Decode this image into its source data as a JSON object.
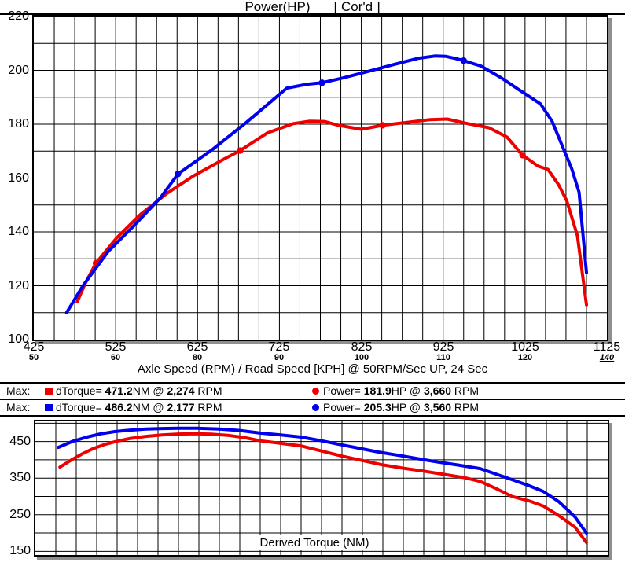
{
  "header": {
    "title_left": "Power(HP)",
    "title_right": "[ Cor'd ]"
  },
  "colors": {
    "red": "#ee0000",
    "blue": "#0000ee",
    "grid": "#000000",
    "frame": "#000000",
    "shadow": "#8f8f8f"
  },
  "legend": {
    "rows": [
      {
        "max_label": "Max:",
        "series_color": "red",
        "torque_prefix": "dTorque= ",
        "torque_value": "471.2",
        "torque_mid": "NM @ ",
        "torque_rpm": "2,274",
        "torque_suffix": " RPM",
        "power_prefix": "Power= ",
        "power_value": "181.9",
        "power_mid": "HP @ ",
        "power_rpm": "3,660",
        "power_suffix": " RPM"
      },
      {
        "max_label": "Max:",
        "series_color": "blue",
        "torque_prefix": "dTorque= ",
        "torque_value": "486.2",
        "torque_mid": "NM @ ",
        "torque_rpm": "2,177",
        "torque_suffix": " RPM",
        "power_prefix": "Power= ",
        "power_value": "205.3",
        "power_mid": "HP @ ",
        "power_rpm": "3,560",
        "power_suffix": " RPM"
      }
    ]
  },
  "chart_data": [
    {
      "id": "power",
      "type": "line",
      "dom": "power-svg",
      "title": "Power(HP) [ Cor'd ]",
      "x_axis": {
        "label": "Axle Speed (RPM) / Road Speed [KPH] @ 50RPM/Sec UP, 24 Sec",
        "range": [
          425,
          1125
        ],
        "grid_step": 25,
        "major_ticks": [
          425,
          525,
          625,
          725,
          825,
          925,
          1025,
          1125
        ],
        "rpm_labels": [
          "425",
          "525",
          "625",
          "725",
          "825",
          "925",
          "1025",
          "1125"
        ],
        "kph_labels": [
          "50",
          "60",
          "80",
          "90",
          "100",
          "110",
          "120",
          "140"
        ]
      },
      "y_axis": {
        "range": [
          100,
          220
        ],
        "grid_step": 10,
        "tick_values": [
          220,
          200,
          180,
          160,
          140,
          120,
          100
        ],
        "tick_labels": [
          "220",
          "200",
          "180",
          "160",
          "140",
          "120",
          "100"
        ]
      },
      "series": [
        {
          "name": "run1-power-red",
          "color": "red",
          "points": [
            [
              478,
              114
            ],
            [
              488,
              121
            ],
            [
              501,
              128.4
            ],
            [
              526,
              137.7
            ],
            [
              555,
              146.4
            ],
            [
              587,
              154.2
            ],
            [
              619,
              160.6
            ],
            [
              657,
              167
            ],
            [
              677,
              170.2
            ],
            [
              710,
              176.7
            ],
            [
              742,
              180.2
            ],
            [
              762,
              181.1
            ],
            [
              780,
              181
            ],
            [
              797,
              179.6
            ],
            [
              825,
              178.1
            ],
            [
              851,
              179.6
            ],
            [
              876,
              180.5
            ],
            [
              909,
              181.7
            ],
            [
              930,
              181.9
            ],
            [
              955,
              180.2
            ],
            [
              981,
              178.7
            ],
            [
              1003,
              175.2
            ],
            [
              1022,
              168.5
            ],
            [
              1041,
              164.4
            ],
            [
              1053,
              163.2
            ],
            [
              1066,
              157.5
            ],
            [
              1076,
              151.5
            ],
            [
              1089,
              138.5
            ],
            [
              1100,
              112.9
            ]
          ],
          "markers": [
            [
              501,
              128.4
            ],
            [
              677,
              170.2
            ],
            [
              851,
              179.6
            ],
            [
              1022,
              168.5
            ]
          ]
        },
        {
          "name": "run2-power-blue",
          "color": "blue",
          "points": [
            [
              465,
              110
            ],
            [
              485,
              120
            ],
            [
              516,
              132.8
            ],
            [
              548,
              142.5
            ],
            [
              580,
              152.8
            ],
            [
              601,
              161.5
            ],
            [
              644,
              170.8
            ],
            [
              684,
              180.5
            ],
            [
              717,
              189
            ],
            [
              734,
              193.4
            ],
            [
              758,
              194.8
            ],
            [
              777,
              195.4
            ],
            [
              803,
              197.2
            ],
            [
              832,
              199.5
            ],
            [
              864,
              202.1
            ],
            [
              895,
              204.5
            ],
            [
              915,
              205.3
            ],
            [
              928,
              205.2
            ],
            [
              940,
              204.4
            ],
            [
              950,
              203.6
            ],
            [
              971,
              201.6
            ],
            [
              996,
              197.2
            ],
            [
              1022,
              191.9
            ],
            [
              1044,
              187.5
            ],
            [
              1058,
              181.1
            ],
            [
              1070,
              172.3
            ],
            [
              1082,
              163.5
            ],
            [
              1091,
              154.7
            ],
            [
              1100,
              124.9
            ]
          ],
          "markers": [
            [
              601,
              161.5
            ],
            [
              777,
              195.4
            ],
            [
              950,
              203.6
            ]
          ]
        }
      ]
    },
    {
      "id": "torque",
      "type": "line",
      "dom": "torque-svg",
      "title": "Derived Torque (NM)",
      "x_axis": {
        "range": [
          425,
          1125
        ],
        "grid_step": 25
      },
      "y_axis": {
        "range": [
          140,
          505
        ],
        "grid_step": 50,
        "grid_start": 150,
        "tick_values": [
          450,
          350,
          250,
          150
        ],
        "tick_labels": [
          "450",
          "350",
          "250",
          "150"
        ]
      },
      "series": [
        {
          "name": "run1-torque-red",
          "color": "red",
          "points": [
            [
              455,
              380
            ],
            [
              468,
              398
            ],
            [
              482,
              416
            ],
            [
              495,
              430
            ],
            [
              510,
              442
            ],
            [
              525,
              451
            ],
            [
              540,
              458
            ],
            [
              560,
              464
            ],
            [
              580,
              468
            ],
            [
              600,
              470.5
            ],
            [
              620,
              471.2
            ],
            [
              640,
              470
            ],
            [
              660,
              467
            ],
            [
              680,
              461
            ],
            [
              700,
              452
            ],
            [
              725,
              445
            ],
            [
              750,
              438
            ],
            [
              775,
              424
            ],
            [
              800,
              410
            ],
            [
              825,
              398
            ],
            [
              850,
              386
            ],
            [
              875,
              377
            ],
            [
              900,
              369
            ],
            [
              925,
              360
            ],
            [
              950,
              351
            ],
            [
              969,
              341
            ],
            [
              988,
              322
            ],
            [
              1008,
              300
            ],
            [
              1030,
              287
            ],
            [
              1046,
              274
            ],
            [
              1065,
              248
            ],
            [
              1085,
              216
            ],
            [
              1099,
              174
            ]
          ],
          "markers": []
        },
        {
          "name": "run2-torque-blue",
          "color": "blue",
          "points": [
            [
              453,
              434
            ],
            [
              470,
              450
            ],
            [
              488,
              462
            ],
            [
              505,
              471
            ],
            [
              522,
              477
            ],
            [
              540,
              481
            ],
            [
              560,
              484
            ],
            [
              580,
              485.5
            ],
            [
              600,
              486.2
            ],
            [
              625,
              486
            ],
            [
              650,
              484
            ],
            [
              675,
              480
            ],
            [
              700,
              473
            ],
            [
              725,
              468
            ],
            [
              750,
              462
            ],
            [
              775,
              452
            ],
            [
              797,
              442
            ],
            [
              820,
              432
            ],
            [
              845,
              421
            ],
            [
              870,
              412
            ],
            [
              893,
              403
            ],
            [
              917,
              394
            ],
            [
              941,
              386
            ],
            [
              969,
              376
            ],
            [
              1008,
              346
            ],
            [
              1028,
              330
            ],
            [
              1046,
              314
            ],
            [
              1065,
              286
            ],
            [
              1085,
              244
            ],
            [
              1099,
              200
            ]
          ],
          "markers": []
        }
      ]
    }
  ]
}
